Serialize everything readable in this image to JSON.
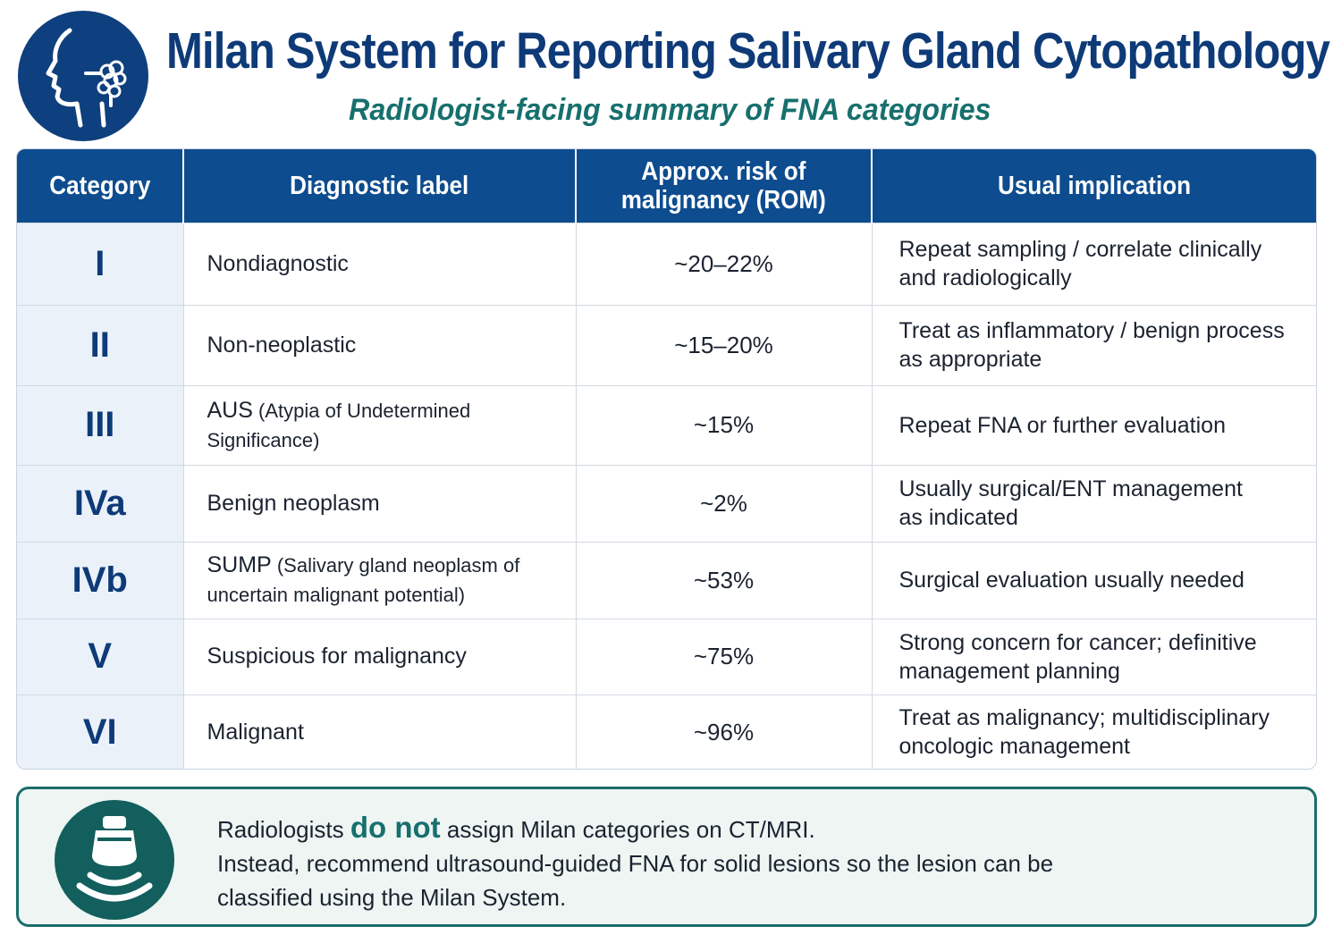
{
  "header": {
    "logo_icon": "head-profile-gland-icon",
    "title": "Milan System for Reporting Salivary Gland Cytopathology",
    "subtitle": "Radiologist-facing summary of FNA categories"
  },
  "table": {
    "columns": [
      "Category",
      "Diagnostic label",
      "Approx. risk of malignancy (ROM)",
      "Usual implication"
    ],
    "column_lines": [
      [
        "Category"
      ],
      [
        "Diagnostic label"
      ],
      [
        "Approx. risk of",
        "malignancy (ROM)"
      ],
      [
        "Usual implication"
      ]
    ],
    "rows": [
      {
        "category": "I",
        "label": "Nondiagnostic",
        "label_detail": "",
        "rom": "~20–22%",
        "implication": [
          "Repeat sampling / correlate clinically",
          "and radiologically"
        ]
      },
      {
        "category": "II",
        "label": "Non-neoplastic",
        "label_detail": "",
        "rom": "~15–20%",
        "implication": [
          "Treat as inflammatory / benign process",
          "as appropriate"
        ]
      },
      {
        "category": "III",
        "label": "AUS",
        "label_detail": " (Atypia of Undetermined Significance)",
        "rom": "~15%",
        "implication": [
          "Repeat FNA or further evaluation"
        ]
      },
      {
        "category": "IVa",
        "label": "Benign neoplasm",
        "label_detail": "",
        "rom": "~2%",
        "implication": [
          "Usually surgical/ENT management",
          "as indicated"
        ]
      },
      {
        "category": "IVb",
        "label": "SUMP",
        "label_detail": " (Salivary gland neoplasm of uncertain malignant potential)",
        "rom": "~53%",
        "implication": [
          "Surgical evaluation usually needed"
        ]
      },
      {
        "category": "V",
        "label": "Suspicious for malignancy",
        "label_detail": "",
        "rom": "~75%",
        "implication": [
          "Strong concern for cancer; definitive",
          "management planning"
        ]
      },
      {
        "category": "VI",
        "label": "Malignant",
        "label_detail": "",
        "rom": "~96%",
        "implication": [
          "Treat as malignancy; multidisciplinary",
          "oncologic management"
        ]
      }
    ]
  },
  "note": {
    "icon": "ultrasound-probe-icon",
    "line1_pre": "Radiologists ",
    "line1_emphasis": "do not",
    "line1_post": " assign Milan categories on CT/MRI.",
    "line2": "Instead, recommend ultrasound-guided FNA for solid lesions so the lesion can be",
    "line3": "classified using the Milan System."
  },
  "colors": {
    "title": "#0e3a78",
    "subtitle": "#17706e",
    "header_bg": "#0d4c8f",
    "category_bg": "#eaf1f9",
    "note_border": "#1a6e6b",
    "note_bg": "#eef5f3"
  }
}
